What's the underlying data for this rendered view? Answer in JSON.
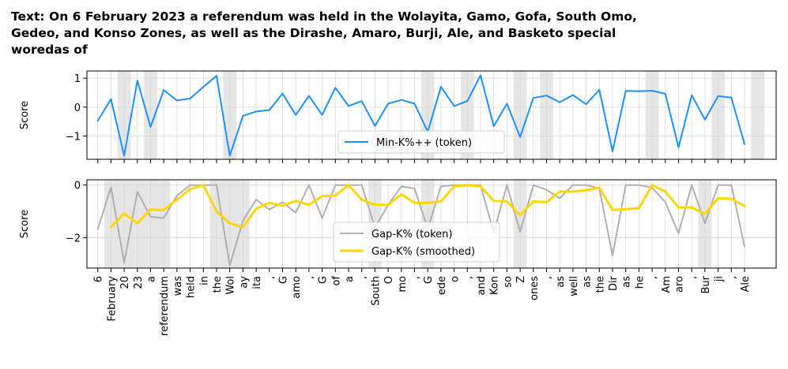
{
  "title_lines": [
    "Text: On 6 February 2023 a referendum was held in the Wolayita, Gamo, Gofa, South Omo,",
    "Gedeo, and Konso Zones, as well as the Dirashe, Amaro, Burji, Ale, and Basketo special",
    "woredas of"
  ],
  "colors": {
    "mink": "#1e90ff",
    "gap_token": "#b0b0b0",
    "gap_smoothed": "#ffd700",
    "highlight": "#e6e6e6",
    "grid": "#d9d9d9"
  },
  "chart_data": [
    {
      "type": "line",
      "ylabel": "Score",
      "ylim": [
        -1.8,
        1.25
      ],
      "yticks": [
        -1,
        0,
        1
      ],
      "ytick_labels": [
        "−1",
        "0",
        "1"
      ],
      "legend_position": "lower-center",
      "highlight_indices": [
        2,
        4,
        10,
        25,
        28,
        32,
        34,
        42,
        47,
        50
      ],
      "series": [
        {
          "name": "Min-K%++ (token)",
          "color": "#1e90ff",
          "values": [
            -0.47,
            0.28,
            -1.68,
            0.92,
            -0.68,
            0.59,
            0.23,
            0.3,
            0.7,
            1.08,
            -1.68,
            -0.3,
            -0.15,
            -0.1,
            0.47,
            -0.27,
            0.39,
            -0.27,
            0.67,
            0.04,
            0.21,
            -0.65,
            0.12,
            0.25,
            0.12,
            -0.85,
            0.7,
            0.04,
            0.21,
            1.1,
            -0.66,
            0.12,
            -1.03,
            0.32,
            0.4,
            0.17,
            0.42,
            0.1,
            0.6,
            -1.53,
            0.56,
            0.55,
            0.57,
            0.46,
            -1.39,
            0.41,
            -0.43,
            0.38,
            0.33,
            -1.28
          ]
        }
      ]
    },
    {
      "type": "line",
      "ylabel": "Score",
      "ylim": [
        -3.15,
        0.2
      ],
      "yticks": [
        -2,
        0
      ],
      "ytick_labels": [
        "−2",
        "0"
      ],
      "legend_position": "lower-center",
      "highlight_spans": [
        [
          1,
          4
        ],
        [
          5,
          5
        ],
        [
          9,
          11
        ],
        [
          21,
          21
        ],
        [
          25,
          25
        ],
        [
          32,
          32
        ],
        [
          46,
          46
        ]
      ],
      "tokens": [
        "6",
        "February",
        "20",
        "23",
        "a",
        "referendum",
        "was",
        "held",
        "in",
        "the",
        "Wol",
        "ay",
        "ita",
        ",",
        "G",
        "amo",
        ",",
        "G",
        "of",
        "a",
        ",",
        "South",
        "O",
        "mo",
        ",",
        "G",
        "ede",
        "o",
        ",",
        "and",
        "Kon",
        "so",
        "Z",
        "ones",
        ",",
        "as",
        "well",
        "as",
        "the",
        "Dir",
        "as",
        "he",
        ",",
        "Am",
        "aro",
        ",",
        "Bur",
        "ji",
        ",",
        "Ale"
      ],
      "series": [
        {
          "name": "Gap-K% (token)",
          "color": "#b0b0b0",
          "values": [
            -1.67,
            -0.08,
            -2.95,
            -0.25,
            -1.21,
            -1.25,
            -0.4,
            0.0,
            0.0,
            0.0,
            -3.05,
            -1.35,
            -0.55,
            -0.93,
            -0.65,
            -1.05,
            0.0,
            -1.25,
            0.0,
            0.0,
            0.0,
            -1.62,
            -0.75,
            -0.05,
            -0.13,
            -1.66,
            -0.05,
            0.0,
            0.0,
            0.0,
            -1.8,
            0.0,
            -1.78,
            0.0,
            -0.18,
            -0.5,
            0.0,
            0.0,
            -0.12,
            -2.68,
            0.0,
            0.0,
            -0.1,
            -0.65,
            -1.83,
            0.0,
            -1.45,
            0.0,
            0.0,
            -2.33
          ]
        },
        {
          "name": "Gap-K% (smoothed)",
          "color": "#ffd700",
          "start_index": 1,
          "values": [
            -1.6,
            -1.08,
            -1.45,
            -0.93,
            -0.95,
            -0.55,
            -0.15,
            0.0,
            -1.0,
            -1.45,
            -1.6,
            -0.9,
            -0.68,
            -0.78,
            -0.6,
            -0.75,
            -0.42,
            -0.4,
            0.0,
            -0.55,
            -0.75,
            -0.75,
            -0.35,
            -0.68,
            -0.68,
            -0.62,
            -0.05,
            0.0,
            -0.05,
            -0.6,
            -0.62,
            -1.15,
            -0.62,
            -0.65,
            -0.25,
            -0.25,
            -0.2,
            -0.1,
            -0.95,
            -0.92,
            -0.88,
            0.0,
            -0.25,
            -0.85,
            -0.85,
            -1.1,
            -0.5,
            -0.52,
            -0.8
          ]
        }
      ]
    }
  ]
}
